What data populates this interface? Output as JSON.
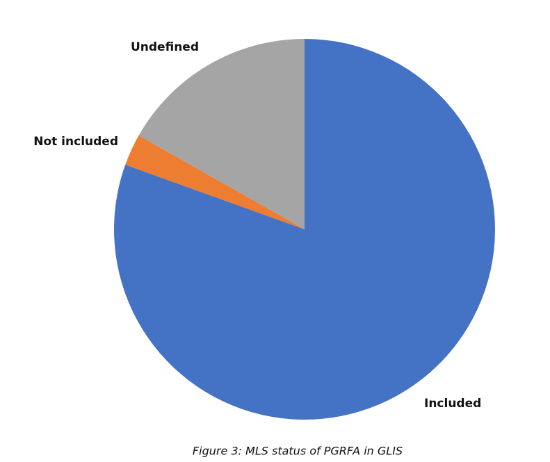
{
  "chart_data": {
    "type": "pie",
    "title": "Figure 3: MLS status of PGRFA in GLIS",
    "categories": [
      "Included",
      "Not included",
      "Undefined"
    ],
    "values": [
      80.5,
      2.7,
      16.8
    ],
    "colors": [
      "#4472c4",
      "#ed7d31",
      "#a5a5a5"
    ]
  }
}
